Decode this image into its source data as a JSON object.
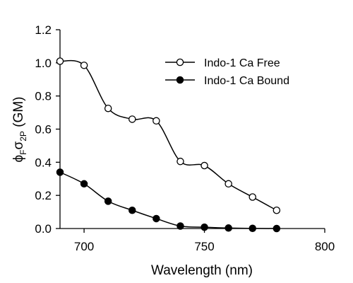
{
  "chart_data": {
    "type": "line",
    "title": "",
    "xlabel": "Wavelength (nm)",
    "ylabel": {
      "base1": "ϕ",
      "sub1": "F",
      "base2": "σ",
      "sub2": "2P",
      "rest": " (GM)"
    },
    "xlim": [
      690,
      800
    ],
    "ylim": [
      0,
      1.2
    ],
    "x_ticks": [
      700,
      750,
      800
    ],
    "x_tick_labels": [
      "700",
      "750",
      "800"
    ],
    "y_ticks": [
      0,
      0.2,
      0.4,
      0.6,
      0.8,
      1.0,
      1.2
    ],
    "y_tick_labels": [
      "0.0",
      "0.2",
      "0.4",
      "0.6",
      "0.8",
      "1.0",
      "1.2"
    ],
    "grid": false,
    "legend_position": "top-right",
    "series": [
      {
        "name": "Indo-1 Ca Free",
        "marker": "open-circle",
        "color": "#000000",
        "x": [
          690,
          700,
          710,
          720,
          730,
          740,
          750,
          760,
          770,
          780
        ],
        "y": [
          1.01,
          0.985,
          0.725,
          0.66,
          0.65,
          0.405,
          0.38,
          0.27,
          0.19,
          0.11
        ]
      },
      {
        "name": "Indo-1 Ca Bound",
        "marker": "filled-circle",
        "color": "#000000",
        "x": [
          690,
          700,
          710,
          720,
          730,
          740,
          750,
          760,
          770,
          780
        ],
        "y": [
          0.34,
          0.27,
          0.165,
          0.11,
          0.06,
          0.015,
          0.008,
          0.003,
          0.001,
          0.0
        ]
      }
    ]
  }
}
